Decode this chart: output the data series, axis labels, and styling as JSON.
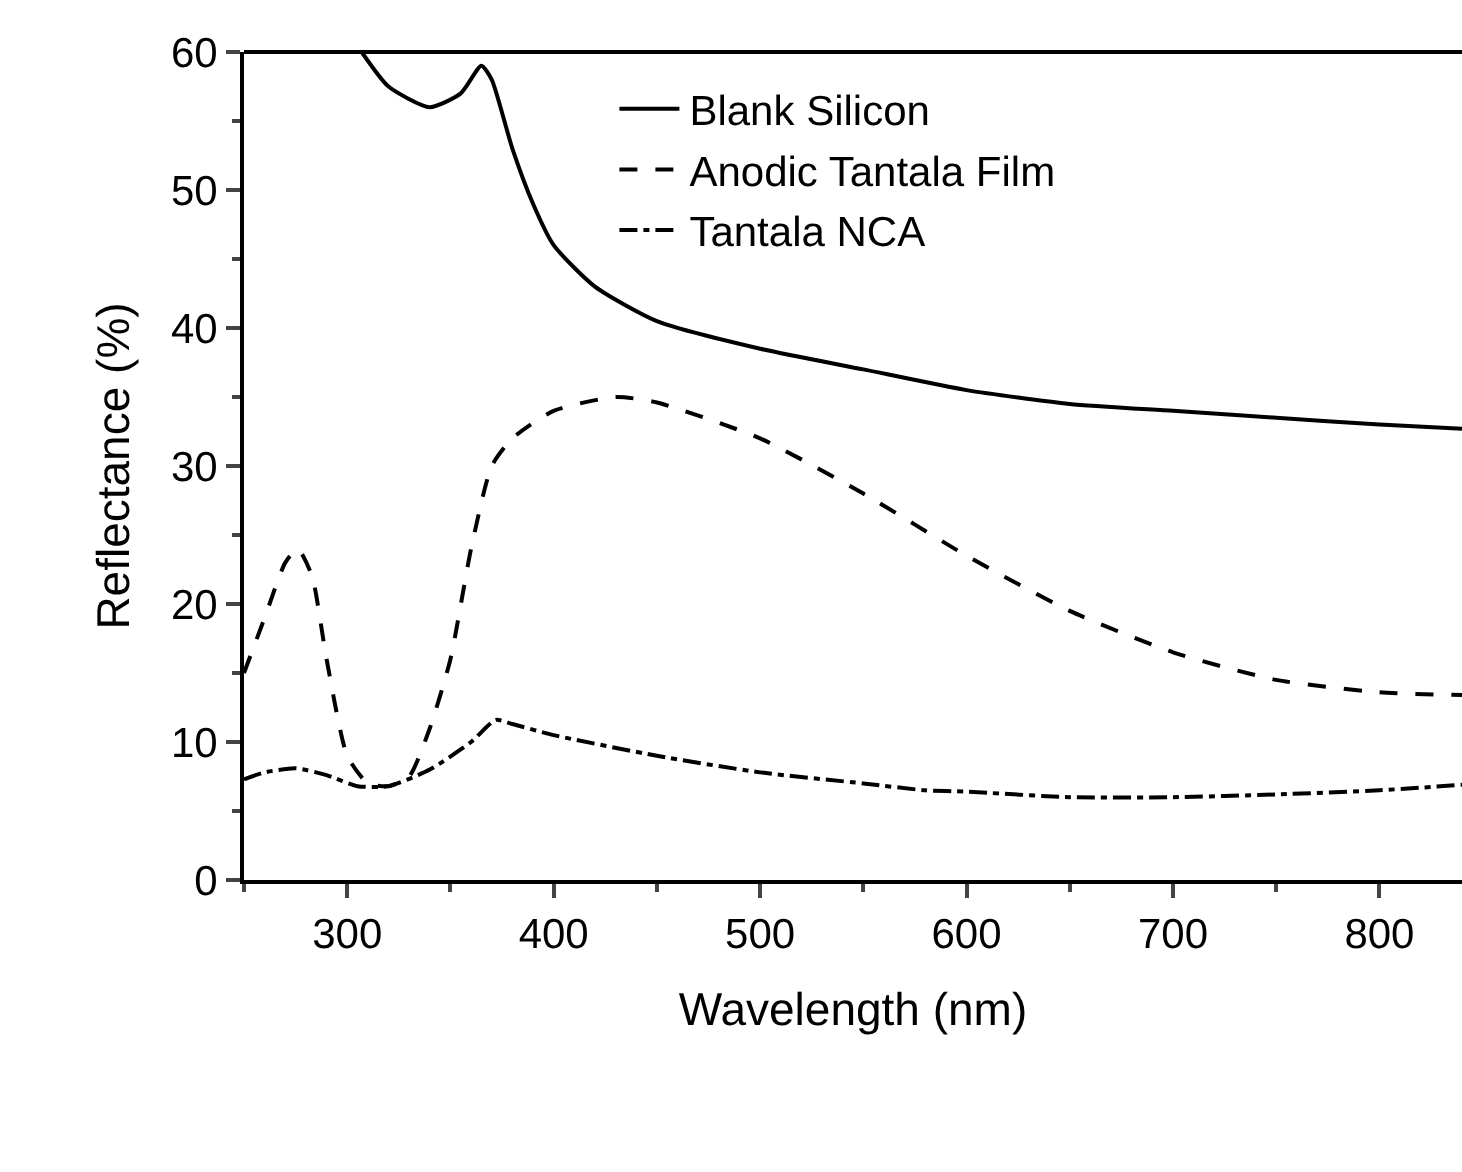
{
  "chart_data": {
    "type": "line",
    "xlabel": "Wavelength (nm)",
    "ylabel": "Reflectance (%)",
    "xlim": [
      250,
      840
    ],
    "xticks": [
      300,
      400,
      500,
      600,
      700,
      800
    ],
    "ylim": [
      0,
      60
    ],
    "yticks": [
      0,
      10,
      20,
      30,
      40,
      50,
      60
    ],
    "grid": false,
    "legend": "top right",
    "marker": "none",
    "series": [
      {
        "name": "Blank Silicon",
        "color": "#000000",
        "line_style": "solid",
        "x": [
          307,
          320,
          340,
          355,
          365,
          370,
          380,
          390,
          400,
          420,
          450,
          500,
          550,
          600,
          650,
          700,
          750,
          800,
          840
        ],
        "values": [
          60,
          57.5,
          56,
          57,
          59,
          58,
          53,
          49,
          46,
          43,
          40.5,
          38.5,
          37,
          35.5,
          34.5,
          34,
          33.5,
          33,
          32.7
        ]
      },
      {
        "name": "Anodic Tantala Film",
        "color": "#000000",
        "line_style": "dashed",
        "x": [
          250,
          260,
          270,
          276,
          283,
          290,
          300,
          310,
          320,
          330,
          340,
          350,
          360,
          370,
          380,
          400,
          430,
          450,
          500,
          550,
          600,
          650,
          700,
          750,
          800,
          840
        ],
        "values": [
          15,
          19,
          23,
          24,
          22,
          16,
          9,
          7,
          6.8,
          7.5,
          11,
          16,
          24,
          30,
          32,
          34,
          35,
          34.6,
          32,
          28,
          23.5,
          19.5,
          16.5,
          14.5,
          13.6,
          13.4
        ]
      },
      {
        "name": "Tantala NCA",
        "color": "#000000",
        "line_style": "dashdot",
        "x": [
          250,
          260,
          275,
          290,
          305,
          320,
          340,
          360,
          372,
          380,
          400,
          450,
          500,
          550,
          580,
          600,
          650,
          700,
          750,
          800,
          840
        ],
        "values": [
          7.3,
          7.8,
          8.1,
          7.6,
          6.8,
          6.8,
          8,
          10,
          11.6,
          11.3,
          10.5,
          9,
          7.8,
          7,
          6.5,
          6.4,
          6,
          6,
          6.2,
          6.5,
          6.9
        ]
      }
    ]
  }
}
